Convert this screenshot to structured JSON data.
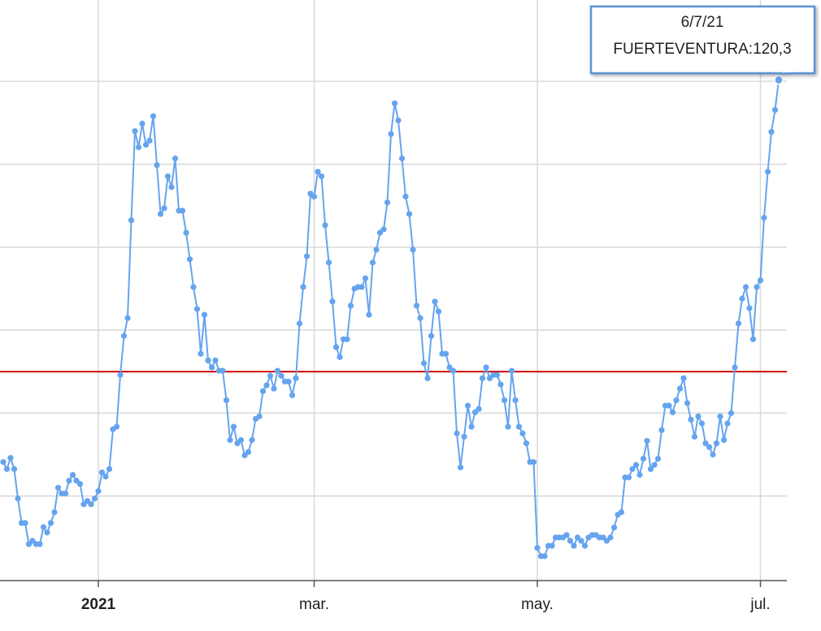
{
  "chart_data": {
    "type": "line",
    "x": [
      "6/12/20",
      "7/12/20",
      "8/12/20",
      "9/12/20",
      "10/12/20",
      "11/12/20",
      "12/12/20",
      "13/12/20",
      "14/12/20",
      "15/12/20",
      "16/12/20",
      "17/12/20",
      "18/12/20",
      "19/12/20",
      "20/12/20",
      "21/12/20",
      "22/12/20",
      "23/12/20",
      "24/12/20",
      "25/12/20",
      "26/12/20",
      "27/12/20",
      "28/12/20",
      "29/12/20",
      "30/12/20",
      "31/12/20",
      "1/1/21",
      "2/1/21",
      "3/1/21",
      "4/1/21",
      "5/1/21",
      "6/1/21",
      "7/1/21",
      "8/1/21",
      "9/1/21",
      "10/1/21",
      "11/1/21",
      "12/1/21",
      "13/1/21",
      "14/1/21",
      "15/1/21",
      "16/1/21",
      "17/1/21",
      "18/1/21",
      "19/1/21",
      "20/1/21",
      "21/1/21",
      "22/1/21",
      "23/1/21",
      "24/1/21",
      "25/1/21",
      "26/1/21",
      "27/1/21",
      "28/1/21",
      "29/1/21",
      "30/1/21",
      "31/1/21",
      "1/2/21",
      "2/2/21",
      "3/2/21",
      "4/2/21",
      "5/2/21",
      "6/2/21",
      "7/2/21",
      "8/2/21",
      "9/2/21",
      "10/2/21",
      "11/2/21",
      "12/2/21",
      "13/2/21",
      "14/2/21",
      "15/2/21",
      "16/2/21",
      "17/2/21",
      "18/2/21",
      "19/2/21",
      "20/2/21",
      "21/2/21",
      "22/2/21",
      "23/2/21",
      "24/2/21",
      "25/2/21",
      "26/2/21",
      "27/2/21",
      "28/2/21",
      "1/3/21",
      "2/3/21",
      "3/3/21",
      "4/3/21",
      "5/3/21",
      "6/3/21",
      "7/3/21",
      "8/3/21",
      "9/3/21",
      "10/3/21",
      "11/3/21",
      "12/3/21",
      "13/3/21",
      "14/3/21",
      "15/3/21",
      "16/3/21",
      "17/3/21",
      "18/3/21",
      "19/3/21",
      "20/3/21",
      "21/3/21",
      "22/3/21",
      "23/3/21",
      "24/3/21",
      "25/3/21",
      "26/3/21",
      "27/3/21",
      "28/3/21",
      "29/3/21",
      "30/3/21",
      "31/3/21",
      "1/4/21",
      "2/4/21",
      "3/4/21",
      "4/4/21",
      "5/4/21",
      "6/4/21",
      "7/4/21",
      "8/4/21",
      "9/4/21",
      "10/4/21",
      "11/4/21",
      "12/4/21",
      "13/4/21",
      "14/4/21",
      "15/4/21",
      "16/4/21",
      "17/4/21",
      "18/4/21",
      "19/4/21",
      "20/4/21",
      "21/4/21",
      "22/4/21",
      "23/4/21",
      "24/4/21",
      "25/4/21",
      "26/4/21",
      "27/4/21",
      "28/4/21",
      "29/4/21",
      "30/4/21",
      "1/5/21",
      "2/5/21",
      "3/5/21",
      "4/5/21",
      "5/5/21",
      "6/5/21",
      "7/5/21",
      "8/5/21",
      "9/5/21",
      "10/5/21",
      "11/5/21",
      "12/5/21",
      "13/5/21",
      "14/5/21",
      "15/5/21",
      "16/5/21",
      "17/5/21",
      "18/5/21",
      "19/5/21",
      "20/5/21",
      "21/5/21",
      "22/5/21",
      "23/5/21",
      "24/5/21",
      "25/5/21",
      "26/5/21",
      "27/5/21",
      "28/5/21",
      "29/5/21",
      "30/5/21",
      "31/5/21",
      "1/6/21",
      "2/6/21",
      "3/6/21",
      "4/6/21",
      "5/6/21",
      "6/6/21",
      "7/6/21",
      "8/6/21",
      "9/6/21",
      "10/6/21",
      "11/6/21",
      "12/6/21",
      "13/6/21",
      "14/6/21",
      "15/6/21",
      "16/6/21",
      "17/6/21",
      "18/6/21",
      "19/6/21",
      "20/6/21",
      "21/6/21",
      "22/6/21",
      "23/6/21",
      "24/6/21",
      "25/6/21",
      "26/6/21",
      "27/6/21",
      "28/6/21",
      "29/6/21",
      "30/6/21",
      "1/7/21",
      "2/7/21",
      "3/7/21",
      "4/7/21",
      "5/7/21",
      "6/7/21"
    ],
    "values": [
      28.2,
      26.5,
      29.2,
      26.5,
      19.4,
      13.5,
      13.5,
      8.4,
      9.2,
      8.4,
      8.4,
      12.5,
      11.2,
      13.5,
      16.1,
      22.0,
      20.6,
      20.6,
      23.7,
      25.1,
      23.7,
      22.9,
      18.0,
      18.8,
      18.0,
      19.4,
      21.2,
      25.7,
      24.7,
      26.5,
      36.1,
      36.7,
      49.2,
      58.6,
      62.9,
      86.5,
      108.0,
      104.1,
      109.8,
      104.7,
      105.7,
      111.6,
      99.8,
      88.0,
      89.4,
      97.1,
      94.5,
      101.4,
      88.8,
      88.8,
      83.5,
      77.1,
      70.4,
      65.1,
      54.3,
      63.7,
      52.7,
      51.0,
      52.7,
      50.2,
      50.2,
      43.1,
      33.5,
      36.7,
      32.7,
      33.5,
      29.8,
      30.6,
      33.5,
      38.6,
      39.2,
      45.3,
      46.7,
      49.0,
      45.9,
      50.2,
      49.0,
      47.6,
      47.6,
      44.3,
      48.4,
      61.6,
      70.4,
      77.8,
      92.9,
      92.2,
      98.2,
      97.1,
      85.3,
      76.3,
      66.9,
      55.9,
      53.5,
      57.8,
      57.8,
      65.9,
      70.0,
      70.4,
      70.4,
      72.5,
      63.7,
      76.3,
      79.4,
      83.5,
      84.3,
      90.8,
      107.3,
      114.7,
      110.6,
      101.4,
      92.2,
      88.0,
      79.4,
      65.9,
      62.9,
      52.0,
      48.4,
      58.6,
      66.9,
      64.5,
      54.3,
      54.3,
      51.0,
      50.2,
      35.1,
      26.9,
      34.3,
      41.8,
      36.7,
      40.2,
      41.0,
      48.4,
      51.0,
      48.4,
      49.2,
      49.2,
      46.9,
      43.1,
      36.7,
      50.2,
      43.1,
      36.7,
      35.1,
      32.7,
      28.2,
      28.2,
      7.5,
      5.5,
      5.5,
      8.0,
      8.0,
      10.0,
      10.0,
      10.0,
      10.6,
      9.2,
      8.0,
      10.0,
      9.2,
      8.0,
      10.0,
      10.6,
      10.6,
      10.0,
      10.0,
      9.2,
      10.0,
      12.4,
      15.5,
      16.1,
      24.5,
      24.5,
      26.5,
      27.5,
      25.1,
      29.0,
      33.3,
      26.5,
      27.5,
      29.0,
      35.9,
      41.8,
      41.8,
      40.2,
      43.1,
      45.9,
      48.4,
      42.4,
      38.4,
      34.3,
      39.2,
      37.5,
      32.7,
      31.8,
      30.0,
      32.7,
      39.2,
      33.5,
      37.5,
      40.0,
      51.0,
      61.6,
      67.6,
      70.4,
      65.3,
      57.8,
      70.4,
      72.0,
      87.1,
      98.2,
      107.8,
      113.1,
      120.3
    ],
    "color": "#65a4ee",
    "ylim": [
      0,
      140
    ],
    "yticks": [
      0,
      20,
      40,
      60,
      80,
      100,
      120
    ],
    "grid": true,
    "xticks": [
      {
        "value": "1/1/21",
        "label": "2021"
      },
      {
        "value": "1/3/21",
        "label": "mar."
      },
      {
        "value": "1/5/21",
        "label": "may."
      },
      {
        "value": "1/7/21",
        "label": "jul."
      }
    ],
    "reference_line": {
      "value": 50,
      "color": "#d40000"
    },
    "tooltip": {
      "title": "6/7/21",
      "text": "FUERTEVENTURA:120,3"
    }
  }
}
